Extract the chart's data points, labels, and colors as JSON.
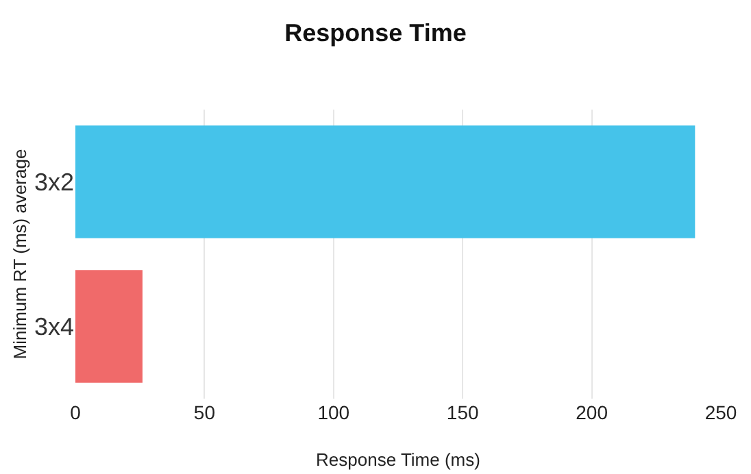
{
  "chart_data": {
    "type": "bar",
    "orientation": "horizontal",
    "title": "Response Time",
    "xlabel": "Response Time (ms)",
    "ylabel": "Minimum RT (ms) average",
    "categories": [
      "3x2",
      "3x4"
    ],
    "values": [
      240,
      26
    ],
    "colors": [
      "#45c3ea",
      "#f06a6a"
    ],
    "xlim": [
      0,
      250
    ],
    "xticks": [
      0,
      50,
      100,
      150,
      200,
      250
    ],
    "grid": "x"
  }
}
